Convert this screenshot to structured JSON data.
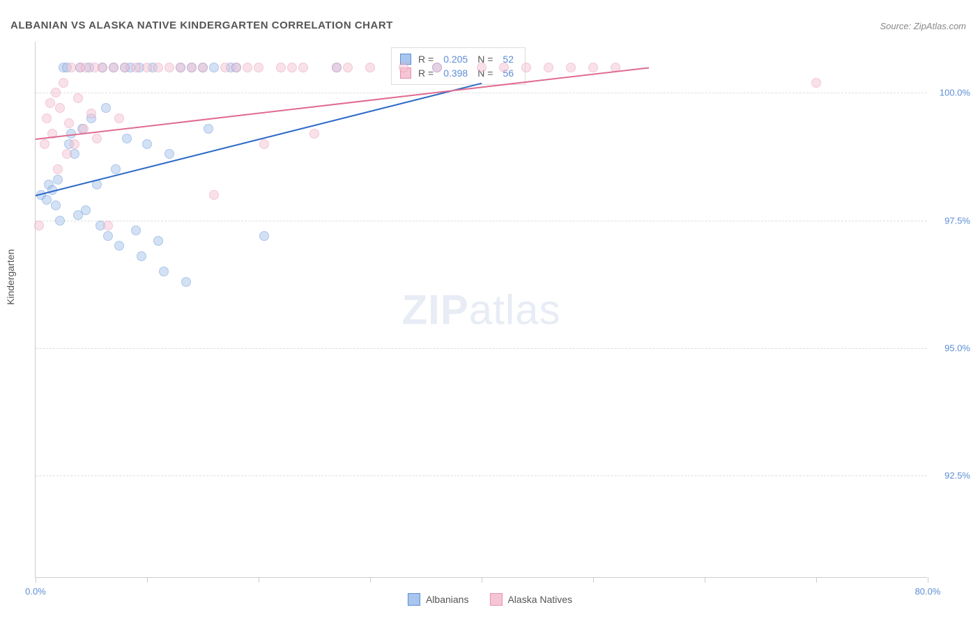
{
  "title": "ALBANIAN VS ALASKA NATIVE KINDERGARTEN CORRELATION CHART",
  "source": "Source: ZipAtlas.com",
  "y_axis_label": "Kindergarten",
  "watermark_bold": "ZIP",
  "watermark_light": "atlas",
  "chart": {
    "type": "scatter",
    "background_color": "#ffffff",
    "grid_color": "#dddddd",
    "axis_color": "#cccccc",
    "text_color": "#555555",
    "value_color": "#5b8dd6",
    "xlim": [
      0,
      80
    ],
    "ylim": [
      90.5,
      101
    ],
    "y_ticks": [
      92.5,
      95.0,
      97.5,
      100.0
    ],
    "y_tick_labels": [
      "92.5%",
      "95.0%",
      "97.5%",
      "100.0%"
    ],
    "x_ticks": [
      0,
      10,
      20,
      30,
      40,
      50,
      60,
      70,
      80
    ],
    "x_tick_labels": {
      "first": "0.0%",
      "last": "80.0%"
    },
    "marker_radius": 7,
    "marker_opacity": 0.5,
    "series": [
      {
        "name": "Albanians",
        "fill_color": "#a8c5ed",
        "stroke_color": "#5b8dd6",
        "R": "0.205",
        "N": "52",
        "trend": {
          "x1": 0,
          "y1": 98.0,
          "x2": 40,
          "y2": 100.2,
          "color": "#2e6bc7",
          "width": 2
        },
        "points": [
          [
            0.5,
            98.0
          ],
          [
            1.0,
            97.9
          ],
          [
            1.2,
            98.2
          ],
          [
            1.5,
            98.1
          ],
          [
            1.8,
            97.8
          ],
          [
            2.0,
            98.3
          ],
          [
            2.2,
            97.5
          ],
          [
            2.5,
            100.5
          ],
          [
            2.8,
            100.5
          ],
          [
            3.0,
            99.0
          ],
          [
            3.2,
            99.2
          ],
          [
            3.5,
            98.8
          ],
          [
            3.8,
            97.6
          ],
          [
            4.0,
            100.5
          ],
          [
            4.2,
            99.3
          ],
          [
            4.5,
            97.7
          ],
          [
            4.8,
            100.5
          ],
          [
            5.0,
            99.5
          ],
          [
            5.5,
            98.2
          ],
          [
            5.8,
            97.4
          ],
          [
            6.0,
            100.5
          ],
          [
            6.3,
            99.7
          ],
          [
            6.5,
            97.2
          ],
          [
            7.0,
            100.5
          ],
          [
            7.2,
            98.5
          ],
          [
            7.5,
            97.0
          ],
          [
            8.0,
            100.5
          ],
          [
            8.2,
            99.1
          ],
          [
            8.5,
            100.5
          ],
          [
            9.0,
            97.3
          ],
          [
            9.3,
            100.5
          ],
          [
            9.5,
            96.8
          ],
          [
            10.0,
            99.0
          ],
          [
            10.5,
            100.5
          ],
          [
            11.0,
            97.1
          ],
          [
            11.5,
            96.5
          ],
          [
            12.0,
            98.8
          ],
          [
            13.0,
            100.5
          ],
          [
            13.5,
            96.3
          ],
          [
            14.0,
            100.5
          ],
          [
            15.0,
            100.5
          ],
          [
            15.5,
            99.3
          ],
          [
            16.0,
            100.5
          ],
          [
            17.5,
            100.5
          ],
          [
            18.0,
            100.5
          ],
          [
            20.5,
            97.2
          ],
          [
            27.0,
            100.5
          ],
          [
            36.0,
            100.5
          ]
        ]
      },
      {
        "name": "Alaska Natives",
        "fill_color": "#f5c5d5",
        "stroke_color": "#e891ab",
        "R": "0.398",
        "N": "56",
        "trend": {
          "x1": 0,
          "y1": 99.1,
          "x2": 55,
          "y2": 100.5,
          "color": "#e06b8f",
          "width": 2
        },
        "points": [
          [
            0.3,
            97.4
          ],
          [
            0.8,
            99.0
          ],
          [
            1.0,
            99.5
          ],
          [
            1.3,
            99.8
          ],
          [
            1.5,
            99.2
          ],
          [
            1.8,
            100.0
          ],
          [
            2.0,
            98.5
          ],
          [
            2.2,
            99.7
          ],
          [
            2.5,
            100.2
          ],
          [
            2.8,
            98.8
          ],
          [
            3.0,
            99.4
          ],
          [
            3.2,
            100.5
          ],
          [
            3.5,
            99.0
          ],
          [
            3.8,
            99.9
          ],
          [
            4.0,
            100.5
          ],
          [
            4.3,
            99.3
          ],
          [
            4.5,
            100.5
          ],
          [
            5.0,
            99.6
          ],
          [
            5.3,
            100.5
          ],
          [
            5.5,
            99.1
          ],
          [
            6.0,
            100.5
          ],
          [
            6.5,
            97.4
          ],
          [
            7.0,
            100.5
          ],
          [
            7.5,
            99.5
          ],
          [
            8.0,
            100.5
          ],
          [
            9.0,
            100.5
          ],
          [
            10.0,
            100.5
          ],
          [
            11.0,
            100.5
          ],
          [
            12.0,
            100.5
          ],
          [
            13.0,
            100.5
          ],
          [
            14.0,
            100.5
          ],
          [
            15.0,
            100.5
          ],
          [
            16.0,
            98.0
          ],
          [
            17.0,
            100.5
          ],
          [
            18.0,
            100.5
          ],
          [
            19.0,
            100.5
          ],
          [
            20.0,
            100.5
          ],
          [
            20.5,
            99.0
          ],
          [
            22.0,
            100.5
          ],
          [
            23.0,
            100.5
          ],
          [
            24.0,
            100.5
          ],
          [
            25.0,
            99.2
          ],
          [
            27.0,
            100.5
          ],
          [
            28.0,
            100.5
          ],
          [
            30.0,
            100.5
          ],
          [
            33.0,
            100.5
          ],
          [
            36.0,
            100.5
          ],
          [
            40.0,
            100.5
          ],
          [
            42.0,
            100.5
          ],
          [
            44.0,
            100.5
          ],
          [
            46.0,
            100.5
          ],
          [
            48.0,
            100.5
          ],
          [
            50.0,
            100.5
          ],
          [
            52.0,
            100.5
          ],
          [
            70.0,
            100.2
          ]
        ]
      }
    ]
  },
  "stats_box": {
    "r_label": "R =",
    "n_label": "N ="
  },
  "legend": {
    "items": [
      "Albanians",
      "Alaska Natives"
    ]
  }
}
